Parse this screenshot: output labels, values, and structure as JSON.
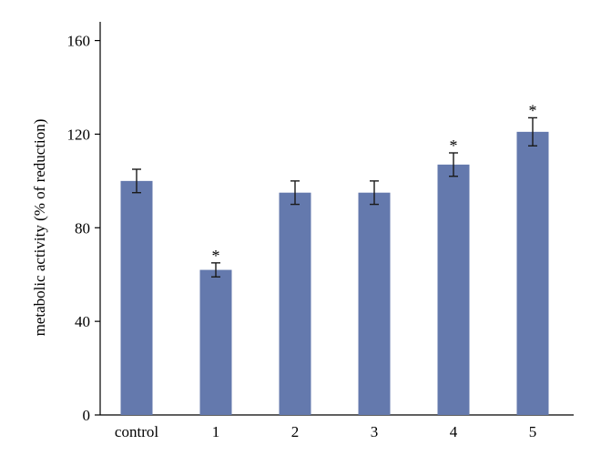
{
  "chart_data": {
    "type": "bar",
    "title": "",
    "xlabel": "",
    "ylabel": "metabolic activity (% of reduction)",
    "categories": [
      "control",
      "1",
      "2",
      "3",
      "4",
      "5"
    ],
    "values": [
      100,
      62,
      95,
      95,
      107,
      121
    ],
    "errors": [
      5,
      3,
      5,
      5,
      5,
      6
    ],
    "significance": [
      "",
      "*",
      "",
      "",
      "*",
      "*"
    ],
    "ylim": [
      0,
      168
    ],
    "yticks": [
      0,
      40,
      80,
      120,
      160
    ],
    "grid": false,
    "colors": {
      "bar": "#6479ad",
      "axis": "#000000",
      "error_bar": "#1a1a1a"
    }
  }
}
